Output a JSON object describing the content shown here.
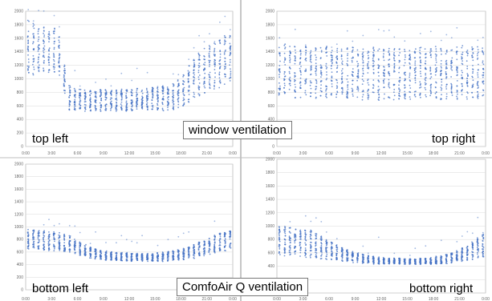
{
  "callouts": {
    "window": "window ventilation",
    "comfoair": "ComfoAir Q ventilation"
  },
  "colors": {
    "points": "#4472c4",
    "grid": "#d9d9d9",
    "frame": "#a6a6a6"
  },
  "chart_data": [
    {
      "type": "scatter",
      "corner_label": "top left",
      "x_ticks": [
        "0:00",
        "3:00",
        "6:00",
        "9:00",
        "12:00",
        "15:00",
        "18:00",
        "21:00",
        "0:00"
      ],
      "y_ticks": [
        "0",
        "200",
        "400",
        "600",
        "800",
        "1000",
        "1200",
        "1400",
        "1600",
        "1800",
        "2000"
      ],
      "ylim": [
        0,
        2000
      ],
      "series": [
        {
          "values": [
            [
              0.3,
              1000,
              1900
            ],
            [
              0.9,
              1050,
              1850
            ],
            [
              1.5,
              1100,
              1800
            ],
            [
              2.1,
              1080,
              1780
            ],
            [
              2.7,
              1020,
              1720
            ],
            [
              3.3,
              1100,
              1750
            ],
            [
              3.9,
              1000,
              1650
            ],
            [
              4.5,
              780,
              1200
            ],
            [
              5.1,
              540,
              900
            ],
            [
              5.7,
              520,
              860
            ],
            [
              6.3,
              520,
              850
            ],
            [
              6.9,
              510,
              840
            ],
            [
              7.5,
              520,
              830
            ],
            [
              8.1,
              520,
              820
            ],
            [
              8.7,
              520,
              840
            ],
            [
              9.3,
              530,
              850
            ],
            [
              9.9,
              530,
              860
            ],
            [
              10.5,
              520,
              850
            ],
            [
              11.1,
              530,
              850
            ],
            [
              11.7,
              520,
              840
            ],
            [
              12.3,
              530,
              850
            ],
            [
              12.9,
              530,
              860
            ],
            [
              13.5,
              520,
              850
            ],
            [
              14.1,
              530,
              860
            ],
            [
              14.7,
              530,
              880
            ],
            [
              15.3,
              530,
              880
            ],
            [
              15.9,
              530,
              900
            ],
            [
              16.5,
              540,
              900
            ],
            [
              17.1,
              540,
              930
            ],
            [
              17.7,
              560,
              1000
            ],
            [
              18.3,
              600,
              1100
            ],
            [
              18.9,
              650,
              1200
            ],
            [
              19.5,
              700,
              1300
            ],
            [
              20.1,
              740,
              1400
            ],
            [
              20.7,
              780,
              1450
            ],
            [
              21.3,
              800,
              1500
            ],
            [
              21.9,
              820,
              1550
            ],
            [
              22.5,
              850,
              1600
            ],
            [
              23.1,
              900,
              1650
            ],
            [
              23.7,
              950,
              1700
            ]
          ]
        }
      ]
    },
    {
      "type": "scatter",
      "corner_label": "top right",
      "x_ticks": [
        "0:00",
        "3:00",
        "6:00",
        "9:00",
        "12:00",
        "15:00",
        "18:00",
        "21:00",
        "0:00"
      ],
      "y_ticks": [
        "0",
        "200",
        "400",
        "600",
        "800",
        "1000",
        "1200",
        "1400",
        "1600",
        "1800",
        "2000"
      ],
      "ylim": [
        0,
        2000
      ],
      "series": [
        {
          "values": [
            [
              0.3,
              700,
              1500
            ],
            [
              0.9,
              720,
              1520
            ],
            [
              1.5,
              700,
              1480
            ],
            [
              2.1,
              680,
              1500
            ],
            [
              2.7,
              690,
              1510
            ],
            [
              3.3,
              700,
              1490
            ],
            [
              3.9,
              690,
              1480
            ],
            [
              4.5,
              700,
              1500
            ],
            [
              5.1,
              680,
              1470
            ],
            [
              5.7,
              700,
              1480
            ],
            [
              6.3,
              690,
              1460
            ],
            [
              6.9,
              700,
              1470
            ],
            [
              7.5,
              680,
              1450
            ],
            [
              8.1,
              690,
              1460
            ],
            [
              8.7,
              700,
              1470
            ],
            [
              9.3,
              690,
              1450
            ],
            [
              9.9,
              680,
              1440
            ],
            [
              10.5,
              690,
              1460
            ],
            [
              11.1,
              700,
              1470
            ],
            [
              11.7,
              680,
              1450
            ],
            [
              12.3,
              690,
              1440
            ],
            [
              12.9,
              700,
              1460
            ],
            [
              13.5,
              680,
              1450
            ],
            [
              14.1,
              690,
              1470
            ],
            [
              14.7,
              700,
              1480
            ],
            [
              15.3,
              690,
              1460
            ],
            [
              15.9,
              680,
              1450
            ],
            [
              16.5,
              700,
              1470
            ],
            [
              17.1,
              690,
              1460
            ],
            [
              17.7,
              680,
              1450
            ],
            [
              18.3,
              700,
              1480
            ],
            [
              18.9,
              690,
              1470
            ],
            [
              19.5,
              700,
              1460
            ],
            [
              20.1,
              680,
              1450
            ],
            [
              20.7,
              690,
              1480
            ],
            [
              21.3,
              700,
              1490
            ],
            [
              21.9,
              690,
              1470
            ],
            [
              22.5,
              700,
              1500
            ],
            [
              23.1,
              690,
              1480
            ],
            [
              23.7,
              700,
              1490
            ]
          ]
        }
      ]
    },
    {
      "type": "scatter",
      "corner_label": "bottom left",
      "x_ticks": [
        "0:00",
        "3:00",
        "6:00",
        "9:00",
        "12:00",
        "15:00",
        "18:00",
        "21:00",
        "0:00"
      ],
      "y_ticks": [
        "0",
        "200",
        "400",
        "600",
        "800",
        "1000",
        "1200",
        "1400",
        "1600",
        "1800",
        "2000"
      ],
      "ylim": [
        0,
        2000
      ],
      "series": [
        {
          "values": [
            [
              0.3,
              650,
              960
            ],
            [
              0.9,
              640,
              950
            ],
            [
              1.5,
              640,
              940
            ],
            [
              2.1,
              630,
              940
            ],
            [
              2.7,
              620,
              930
            ],
            [
              3.3,
              620,
              920
            ],
            [
              3.9,
              610,
              910
            ],
            [
              4.5,
              600,
              900
            ],
            [
              5.1,
              590,
              880
            ],
            [
              5.7,
              560,
              820
            ],
            [
              6.3,
              540,
              760
            ],
            [
              6.9,
              520,
              720
            ],
            [
              7.5,
              500,
              680
            ],
            [
              8.1,
              490,
              650
            ],
            [
              8.7,
              480,
              630
            ],
            [
              9.3,
              470,
              620
            ],
            [
              9.9,
              460,
              610
            ],
            [
              10.5,
              460,
              600
            ],
            [
              11.1,
              450,
              590
            ],
            [
              11.7,
              450,
              590
            ],
            [
              12.3,
              450,
              580
            ],
            [
              12.9,
              450,
              580
            ],
            [
              13.5,
              450,
              580
            ],
            [
              14.1,
              450,
              580
            ],
            [
              14.7,
              450,
              590
            ],
            [
              15.3,
              450,
              590
            ],
            [
              15.9,
              450,
              600
            ],
            [
              16.5,
              460,
              610
            ],
            [
              17.1,
              460,
              620
            ],
            [
              17.7,
              470,
              640
            ],
            [
              18.3,
              480,
              660
            ],
            [
              18.9,
              490,
              680
            ],
            [
              19.5,
              500,
              720
            ],
            [
              20.1,
              520,
              760
            ],
            [
              20.7,
              540,
              800
            ],
            [
              21.3,
              560,
              840
            ],
            [
              21.9,
              580,
              870
            ],
            [
              22.5,
              600,
              900
            ],
            [
              23.1,
              620,
              920
            ],
            [
              23.7,
              640,
              940
            ]
          ]
        }
      ]
    },
    {
      "type": "scatter",
      "corner_label": "bottom right",
      "x_ticks": [
        "0:00",
        "3:00",
        "6:00",
        "9:00",
        "12:00",
        "15:00",
        "18:00",
        "21:00",
        "0:00"
      ],
      "y_ticks": [
        "0",
        "200",
        "400",
        "600",
        "800",
        "1000",
        "1200",
        "1400",
        "1600",
        "1800",
        "2000"
      ],
      "ylim": [
        0,
        2000
      ],
      "series": [
        {
          "values": [
            [
              0.3,
              560,
              1000
            ],
            [
              0.9,
              550,
              990
            ],
            [
              1.5,
              550,
              980
            ],
            [
              2.1,
              540,
              970
            ],
            [
              2.7,
              540,
              960
            ],
            [
              3.3,
              530,
              950
            ],
            [
              3.9,
              530,
              940
            ],
            [
              4.5,
              520,
              900
            ],
            [
              5.1,
              510,
              850
            ],
            [
              5.7,
              500,
              800
            ],
            [
              6.3,
              490,
              760
            ],
            [
              6.9,
              480,
              720
            ],
            [
              7.5,
              470,
              680
            ],
            [
              8.1,
              460,
              650
            ],
            [
              8.7,
              450,
              620
            ],
            [
              9.3,
              450,
              600
            ],
            [
              9.9,
              440,
              580
            ],
            [
              10.5,
              440,
              560
            ],
            [
              11.1,
              430,
              550
            ],
            [
              11.7,
              430,
              540
            ],
            [
              12.3,
              430,
              530
            ],
            [
              12.9,
              430,
              520
            ],
            [
              13.5,
              430,
              520
            ],
            [
              14.1,
              430,
              520
            ],
            [
              14.7,
              430,
              510
            ],
            [
              15.3,
              430,
              510
            ],
            [
              15.9,
              430,
              510
            ],
            [
              16.5,
              430,
              520
            ],
            [
              17.1,
              430,
              520
            ],
            [
              17.7,
              430,
              530
            ],
            [
              18.3,
              430,
              540
            ],
            [
              18.9,
              440,
              560
            ],
            [
              19.5,
              440,
              580
            ],
            [
              20.1,
              450,
              600
            ],
            [
              20.7,
              460,
              640
            ],
            [
              21.3,
              470,
              680
            ],
            [
              21.9,
              480,
              720
            ],
            [
              22.5,
              500,
              780
            ],
            [
              23.1,
              520,
              840
            ],
            [
              23.7,
              540,
              900
            ]
          ]
        }
      ]
    }
  ]
}
